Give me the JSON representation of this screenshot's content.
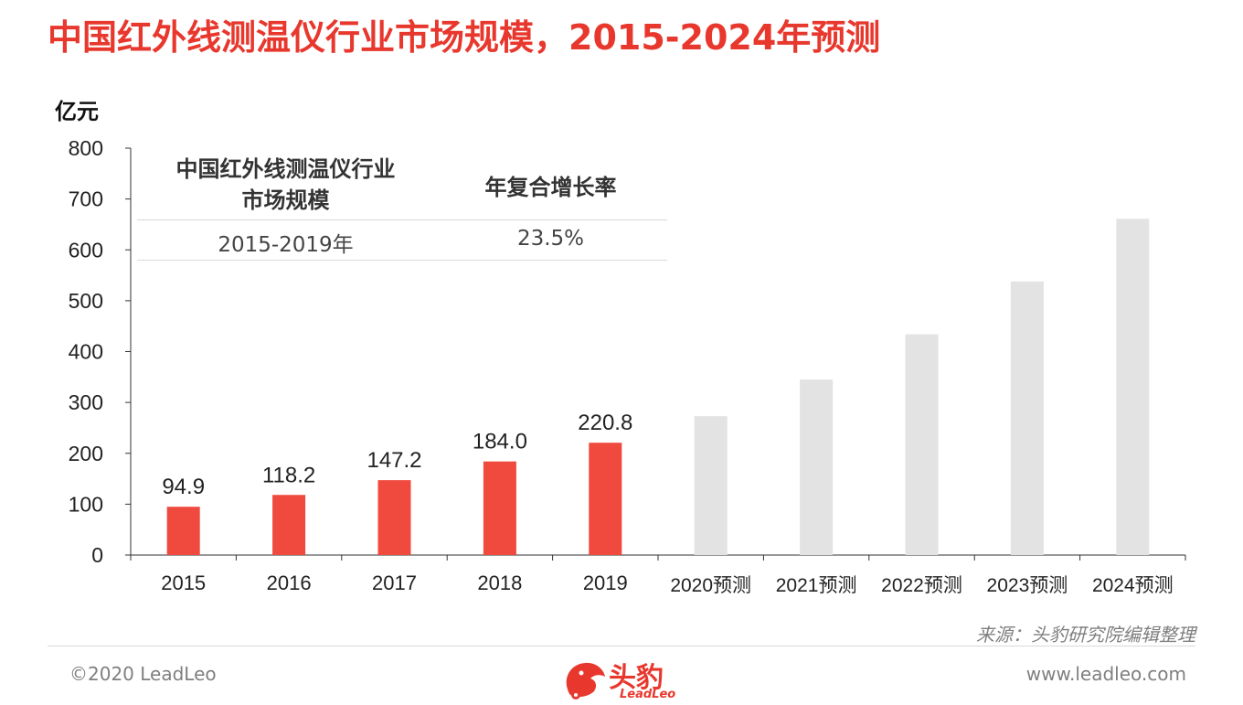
{
  "title": "中国红外线测温仪行业市场规模，2015-2024年预测",
  "unit": "亿元",
  "colors": {
    "title": "#e8382e",
    "actual_bar": "#f0493e",
    "forecast_bar": "#e3e3e3",
    "accent": "#e8382e"
  },
  "cagr_table": {
    "header_market": "中国红外线测温仪行业\n市场规模",
    "header_cagr": "年复合增长率",
    "period": "2015-2019年",
    "rate": "23.5%"
  },
  "chart_data": {
    "type": "bar",
    "categories": [
      "2015",
      "2016",
      "2017",
      "2018",
      "2019",
      "2020预测",
      "2021预测",
      "2022预测",
      "2023预测",
      "2024预测"
    ],
    "values": [
      94.9,
      118.2,
      147.2,
      184.0,
      220.8,
      273,
      345,
      434,
      538,
      661
    ],
    "data_labels": [
      "94.9",
      "118.2",
      "147.2",
      "184.0",
      "220.8",
      "",
      "",
      "",
      "",
      ""
    ],
    "bar_kind": [
      "actual",
      "actual",
      "actual",
      "actual",
      "actual",
      "forecast",
      "forecast",
      "forecast",
      "forecast",
      "forecast"
    ],
    "yticks": [
      "0",
      "100",
      "200",
      "300",
      "400",
      "500",
      "600",
      "700",
      "800"
    ],
    "ylim": [
      0,
      800
    ],
    "ylabel": "亿元",
    "grid": false,
    "legend": "none"
  },
  "footer": {
    "source": "来源：头豹研究院编辑整理",
    "copyright": "©2020 LeadLeo",
    "website": "www.leadleo.com",
    "logo_cn": "头豹",
    "logo_en": "LeadLeo"
  }
}
